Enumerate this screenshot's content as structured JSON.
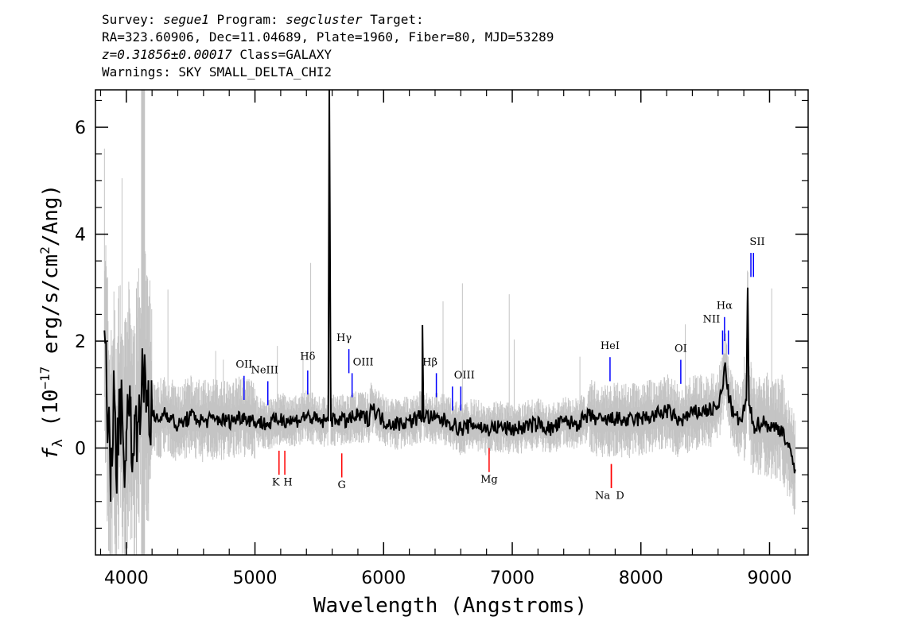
{
  "header": {
    "survey_label": "Survey:",
    "survey": "segue1",
    "program_label": "Program:",
    "program": "segcluster",
    "target_label": "Target:",
    "line2": "RA=323.60906, Dec=11.04689, Plate=1960, Fiber=80, MJD=53289",
    "redshift": "z=0.31856±0.00017",
    "class": "Class=GALAXY",
    "warnings": "Warnings: SKY SMALL_DELTA_CHI2"
  },
  "chart_data": {
    "type": "line",
    "xlabel": "Wavelength (Angstroms)",
    "ylabel_prefix": "f",
    "ylabel_sub": "λ",
    "ylabel_rest": " (10",
    "ylabel_exp": "−17",
    "ylabel_tail": " erg/s/cm",
    "ylabel_exp2": "2",
    "ylabel_end": "/Ang)",
    "xlim": [
      3760,
      9300
    ],
    "ylim": [
      -2.0,
      6.7
    ],
    "xticks": [
      4000,
      5000,
      6000,
      7000,
      8000,
      9000
    ],
    "yticks": [
      0,
      2,
      4,
      6
    ],
    "colors": {
      "flux": "#000000",
      "error_band": "#c4c4c4",
      "emission_marker": "#0000ff",
      "absorption_marker": "#ff0000"
    },
    "masked_region": [
      4115,
      4145
    ],
    "series": [
      {
        "type": "flux_points",
        "x": [
          3830,
          3860,
          3880,
          3900,
          3920,
          3950,
          3980,
          4000,
          4030,
          4060,
          4100,
          4150,
          4200,
          4250,
          4300,
          4400,
          4500,
          4600,
          4700,
          4800,
          4900,
          5000,
          5100,
          5200,
          5300,
          5400,
          5500,
          5570,
          5578,
          5590,
          5650,
          5700,
          5800,
          5890,
          5900,
          6000,
          6100,
          6200,
          6300,
          6302,
          6310,
          6400,
          6500,
          6600,
          6700,
          6800,
          6900,
          7000,
          7100,
          7200,
          7300,
          7400,
          7500,
          7600,
          7700,
          7800,
          7900,
          8000,
          8100,
          8200,
          8300,
          8400,
          8500,
          8600,
          8640,
          8655,
          8680,
          8720,
          8780,
          8820,
          8830,
          8840,
          8880,
          8950,
          9000,
          9100,
          9200
        ],
        "y": [
          2.2,
          0.5,
          -0.3,
          0.9,
          -0.5,
          1.1,
          -0.2,
          0.3,
          0.8,
          -0.1,
          1.0,
          1.2,
          0.6,
          0.5,
          0.7,
          0.4,
          0.6,
          0.5,
          0.55,
          0.5,
          0.6,
          0.5,
          0.45,
          0.55,
          0.5,
          0.6,
          0.5,
          0.5,
          6.7,
          0.5,
          0.55,
          0.5,
          0.6,
          0.55,
          0.8,
          0.5,
          0.45,
          0.5,
          0.6,
          2.3,
          0.6,
          0.55,
          0.5,
          0.35,
          0.45,
          0.35,
          0.4,
          0.35,
          0.4,
          0.45,
          0.35,
          0.5,
          0.45,
          0.6,
          0.5,
          0.55,
          0.5,
          0.55,
          0.6,
          0.7,
          0.5,
          0.65,
          0.7,
          0.75,
          1.2,
          1.6,
          1.0,
          0.6,
          0.5,
          0.9,
          3.0,
          0.8,
          0.4,
          0.5,
          0.4,
          0.35,
          -0.4
        ]
      }
    ],
    "emission_lines": [
      {
        "label": "OII",
        "x": 4915,
        "y0": 0.9,
        "y1": 1.35,
        "ly": 1.5
      },
      {
        "label": "NeIII",
        "x": 5100,
        "y0": 0.8,
        "y1": 1.25,
        "ly": 1.4
      },
      {
        "label": "Hδ",
        "x": 5410,
        "y0": 1.0,
        "y1": 1.45,
        "ly": 1.65
      },
      {
        "label": "Hγ",
        "x": 5730,
        "y0": 1.4,
        "y1": 1.85,
        "ly": 2.0
      },
      {
        "label": "OIII",
        "x": 5755,
        "y0": 0.95,
        "y1": 1.4,
        "ly": 1.55
      },
      {
        "label": "Hβ",
        "x": 6410,
        "y0": 0.95,
        "y1": 1.4,
        "ly": 1.55
      },
      {
        "label": "OIII",
        "x": 6535,
        "y0": 0.7,
        "y1": 1.15,
        "ly": 1.3
      },
      {
        "label": "OIII",
        "x": 6600,
        "y0": 0.7,
        "y1": 1.15,
        "ly": 1.3
      },
      {
        "label": "HeI",
        "x": 7760,
        "y0": 1.25,
        "y1": 1.7,
        "ly": 1.85
      },
      {
        "label": "OI",
        "x": 8310,
        "y0": 1.2,
        "y1": 1.65,
        "ly": 1.8
      },
      {
        "label": "NII",
        "x": 8635,
        "y0": 1.75,
        "y1": 2.2,
        "ly": 2.35
      },
      {
        "label": "Hα",
        "x": 8650,
        "y0": 2.0,
        "y1": 2.45,
        "ly": 2.6
      },
      {
        "label": "NII",
        "x": 8680,
        "y0": 1.75,
        "y1": 2.2,
        "ly": 2.35
      },
      {
        "label": "SII",
        "x": 8855,
        "y0": 3.2,
        "y1": 3.65,
        "ly": 3.8
      },
      {
        "label": "SII",
        "x": 8875,
        "y0": 3.2,
        "y1": 3.65,
        "ly": 3.8
      }
    ],
    "absorption_lines": [
      {
        "label": "K",
        "x": 5187,
        "y0": -0.05,
        "y1": -0.5,
        "ly": -0.7
      },
      {
        "label": "H",
        "x": 5232,
        "y0": -0.05,
        "y1": -0.5,
        "ly": -0.7
      },
      {
        "label": "G",
        "x": 5675,
        "y0": -0.1,
        "y1": -0.55,
        "ly": -0.75
      },
      {
        "label": "Mg",
        "x": 6820,
        "y0": 0.0,
        "y1": -0.45,
        "ly": -0.65
      },
      {
        "label": "Na",
        "x": 7770,
        "y0": -0.3,
        "y1": -0.75,
        "ly": -0.95
      },
      {
        "label": "D",
        "x": 7770,
        "y0": -0.3,
        "y1": -0.75,
        "ly": -0.95
      }
    ]
  }
}
